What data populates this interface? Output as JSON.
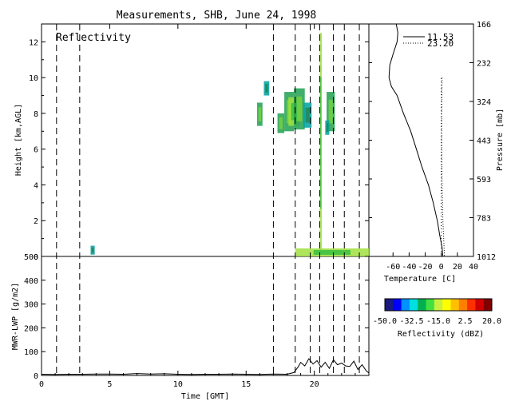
{
  "page_title": "Measurements, SHB, June 24, 1998",
  "chart_data": [
    {
      "id": "reflectivity",
      "type": "heatmap",
      "panel_label": "Reflectivity",
      "xlabel": "",
      "ylabel": "Height [km,AGL]",
      "xlim": [
        0,
        24
      ],
      "ylim": [
        0,
        13
      ],
      "yticks": [
        "0",
        "2",
        "4",
        "6",
        "8",
        "10",
        "12"
      ],
      "dashed_times": [
        1.1,
        2.8,
        17.0,
        18.6,
        19.7,
        20.4,
        21.4,
        22.2,
        23.3
      ],
      "cells": [
        {
          "t0": 15.8,
          "t1": 16.2,
          "z0": 7.3,
          "z1": 8.6,
          "level": "mid"
        },
        {
          "t0": 16.3,
          "t1": 16.7,
          "z0": 9.0,
          "z1": 9.8,
          "level": "low"
        },
        {
          "t0": 17.3,
          "t1": 17.8,
          "z0": 6.9,
          "z1": 8.0,
          "level": "mid"
        },
        {
          "t0": 17.8,
          "t1": 18.5,
          "z0": 7.0,
          "z1": 9.2,
          "level": "mid"
        },
        {
          "t0": 18.1,
          "t1": 18.9,
          "z0": 7.3,
          "z1": 8.9,
          "level": "high"
        },
        {
          "t0": 18.5,
          "t1": 19.3,
          "z0": 7.1,
          "z1": 9.4,
          "level": "mid"
        },
        {
          "t0": 19.2,
          "t1": 19.8,
          "z0": 7.2,
          "z1": 8.6,
          "level": "low"
        },
        {
          "t0": 20.4,
          "t1": 20.55,
          "z0": 0.2,
          "z1": 12.5,
          "level": "high"
        },
        {
          "t0": 20.9,
          "t1": 21.5,
          "z0": 7.0,
          "z1": 9.2,
          "level": "mid"
        },
        {
          "t0": 20.8,
          "t1": 21.1,
          "z0": 6.8,
          "z1": 7.6,
          "level": "low"
        },
        {
          "t0": 18.6,
          "t1": 24.0,
          "z0": 0.0,
          "z1": 0.45,
          "level": "high"
        },
        {
          "t0": 3.6,
          "t1": 3.9,
          "z0": 0.1,
          "z1": 0.6,
          "level": "low"
        }
      ]
    },
    {
      "id": "lwp",
      "type": "line",
      "xlabel": "Time [GMT]",
      "ylabel": "MWR-LWP [g/m2]",
      "xlim": [
        0,
        24
      ],
      "ylim": [
        0,
        500
      ],
      "xticks": [
        "0",
        "5",
        "10",
        "15",
        "20"
      ],
      "yticks": [
        "0",
        "100",
        "200",
        "300",
        "400",
        "500"
      ],
      "series": [
        {
          "x": [
            0,
            1,
            2,
            3,
            4,
            5,
            6,
            7,
            8,
            9,
            10,
            11,
            12,
            13,
            14,
            15,
            16,
            17,
            18,
            18.5,
            18.8,
            19.0,
            19.3,
            19.6,
            19.9,
            20.2,
            20.5,
            20.8,
            21.1,
            21.4,
            21.7,
            22.0,
            22.3,
            22.6,
            22.9,
            23.2,
            23.5,
            23.8,
            24.0
          ],
          "y": [
            5,
            4,
            5,
            5,
            6,
            6,
            5,
            8,
            6,
            7,
            5,
            4,
            5,
            5,
            6,
            5,
            4,
            6,
            5,
            12,
            35,
            55,
            40,
            70,
            48,
            62,
            35,
            55,
            30,
            66,
            45,
            52,
            40,
            38,
            60,
            25,
            45,
            20,
            10
          ]
        }
      ]
    },
    {
      "id": "temperature",
      "type": "line",
      "xlabel": "Temperature [C]",
      "ylabel": "",
      "y2label": "Pressure [mb]",
      "xlim": [
        -90,
        40
      ],
      "ylim": [
        0,
        13
      ],
      "xticks": [
        "-60",
        "-40",
        "-20",
        "0",
        "20",
        "40"
      ],
      "pressure_ticks": [
        "166",
        "232",
        "324",
        "443",
        "593",
        "783",
        "1012"
      ],
      "series": [
        {
          "name": "11.53",
          "style": "solid",
          "x": [
            -56,
            -54,
            -55,
            -60,
            -64,
            -65,
            -62,
            -55,
            -47,
            -38,
            -31,
            -24,
            -16,
            -10,
            -5,
            -2,
            1,
            2
          ],
          "y": [
            13,
            12.5,
            12,
            11.3,
            10.7,
            10,
            9.5,
            9,
            8,
            7,
            6,
            5,
            4,
            3,
            2,
            1.2,
            0.5,
            0
          ]
        },
        {
          "name": "23.20",
          "style": "dotted",
          "x": [
            1,
            0.5,
            0.5,
            1,
            2,
            3,
            4
          ],
          "y": [
            10,
            8,
            6,
            4,
            2,
            1,
            0
          ]
        }
      ]
    },
    {
      "id": "colorbar",
      "type": "heatmap",
      "label": "Reflectivity (dBZ)",
      "ticks": [
        "-50.0",
        "-32.5",
        "-15.0",
        "2.5",
        "20.0"
      ],
      "colors": [
        "#1a1a80",
        "#0000ff",
        "#0090ff",
        "#00e0e0",
        "#00b050",
        "#40e040",
        "#c8f040",
        "#ffff00",
        "#ffc000",
        "#ff8000",
        "#ff3000",
        "#d00000",
        "#800000"
      ]
    }
  ]
}
